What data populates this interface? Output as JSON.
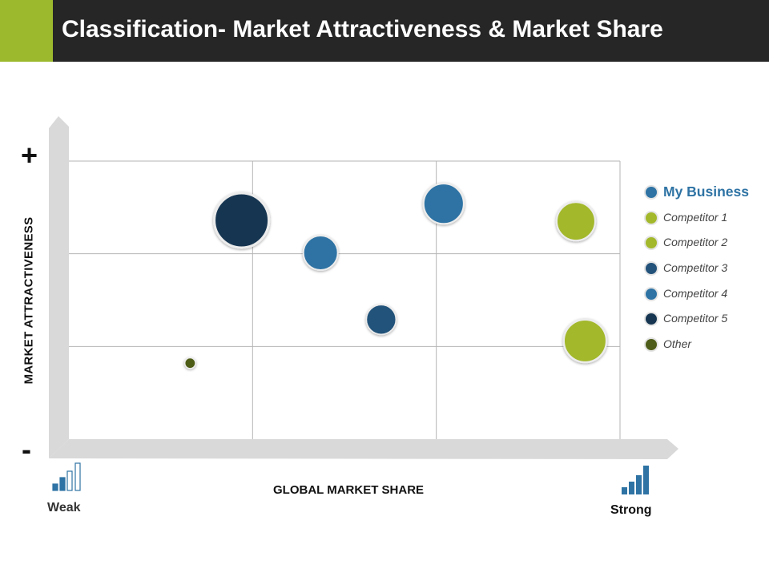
{
  "header": {
    "title": "Classification- Market Attractiveness & Market Share",
    "accent_color": "#9cb92e",
    "background_color": "#262626"
  },
  "axes": {
    "y_label": "MARKET ATTRACTIVENESS",
    "x_label": "GLOBAL MARKET SHARE",
    "y_high_marker": "+",
    "y_low_marker": "-",
    "x_low_label": "Weak",
    "x_high_label": "Strong",
    "x_low_icon": "weak-signal-bars-icon",
    "x_high_icon": "strong-signal-bars-icon"
  },
  "chart_data": {
    "type": "scatter",
    "grid": "3x3 quadrants",
    "xlim": [
      0,
      3
    ],
    "ylim": [
      0,
      3
    ],
    "legend_position": "right",
    "series": [
      {
        "name": "My Business",
        "color": "#2e73a4",
        "points": [
          {
            "x": 2.04,
            "y": 2.54,
            "size": 0.68
          },
          {
            "x": 1.37,
            "y": 2.01,
            "size": 0.58
          }
        ]
      },
      {
        "name": "Competitor 1",
        "color": "#a3b82a",
        "points": [
          {
            "x": 2.76,
            "y": 2.35,
            "size": 0.65
          }
        ]
      },
      {
        "name": "Competitor 2",
        "color": "#a3b82a",
        "points": [
          {
            "x": 2.81,
            "y": 1.06,
            "size": 0.72
          }
        ]
      },
      {
        "name": "Competitor 3",
        "color": "#23527a",
        "points": [
          {
            "x": 1.7,
            "y": 1.29,
            "size": 0.5
          }
        ]
      },
      {
        "name": "Competitor 4",
        "color": "#2e73a4",
        "points": []
      },
      {
        "name": "Competitor 5",
        "color": "#163651",
        "points": [
          {
            "x": 0.94,
            "y": 2.36,
            "size": 0.92
          }
        ]
      },
      {
        "name": "Other",
        "color": "#4e5d19",
        "points": [
          {
            "x": 0.66,
            "y": 0.82,
            "size": 0.18
          }
        ]
      }
    ]
  },
  "legend": {
    "items": [
      {
        "label": "My Business",
        "color": "#2e73a4",
        "label_color": "#2e73a4"
      },
      {
        "label": "Competitor 1",
        "color": "#a3b82a"
      },
      {
        "label": "Competitor 2",
        "color": "#a3b82a"
      },
      {
        "label": "Competitor 3",
        "color": "#23527a"
      },
      {
        "label": "Competitor 4",
        "color": "#2e73a4"
      },
      {
        "label": "Competitor 5",
        "color": "#163651"
      },
      {
        "label": "Other",
        "color": "#4e5d19"
      }
    ]
  }
}
